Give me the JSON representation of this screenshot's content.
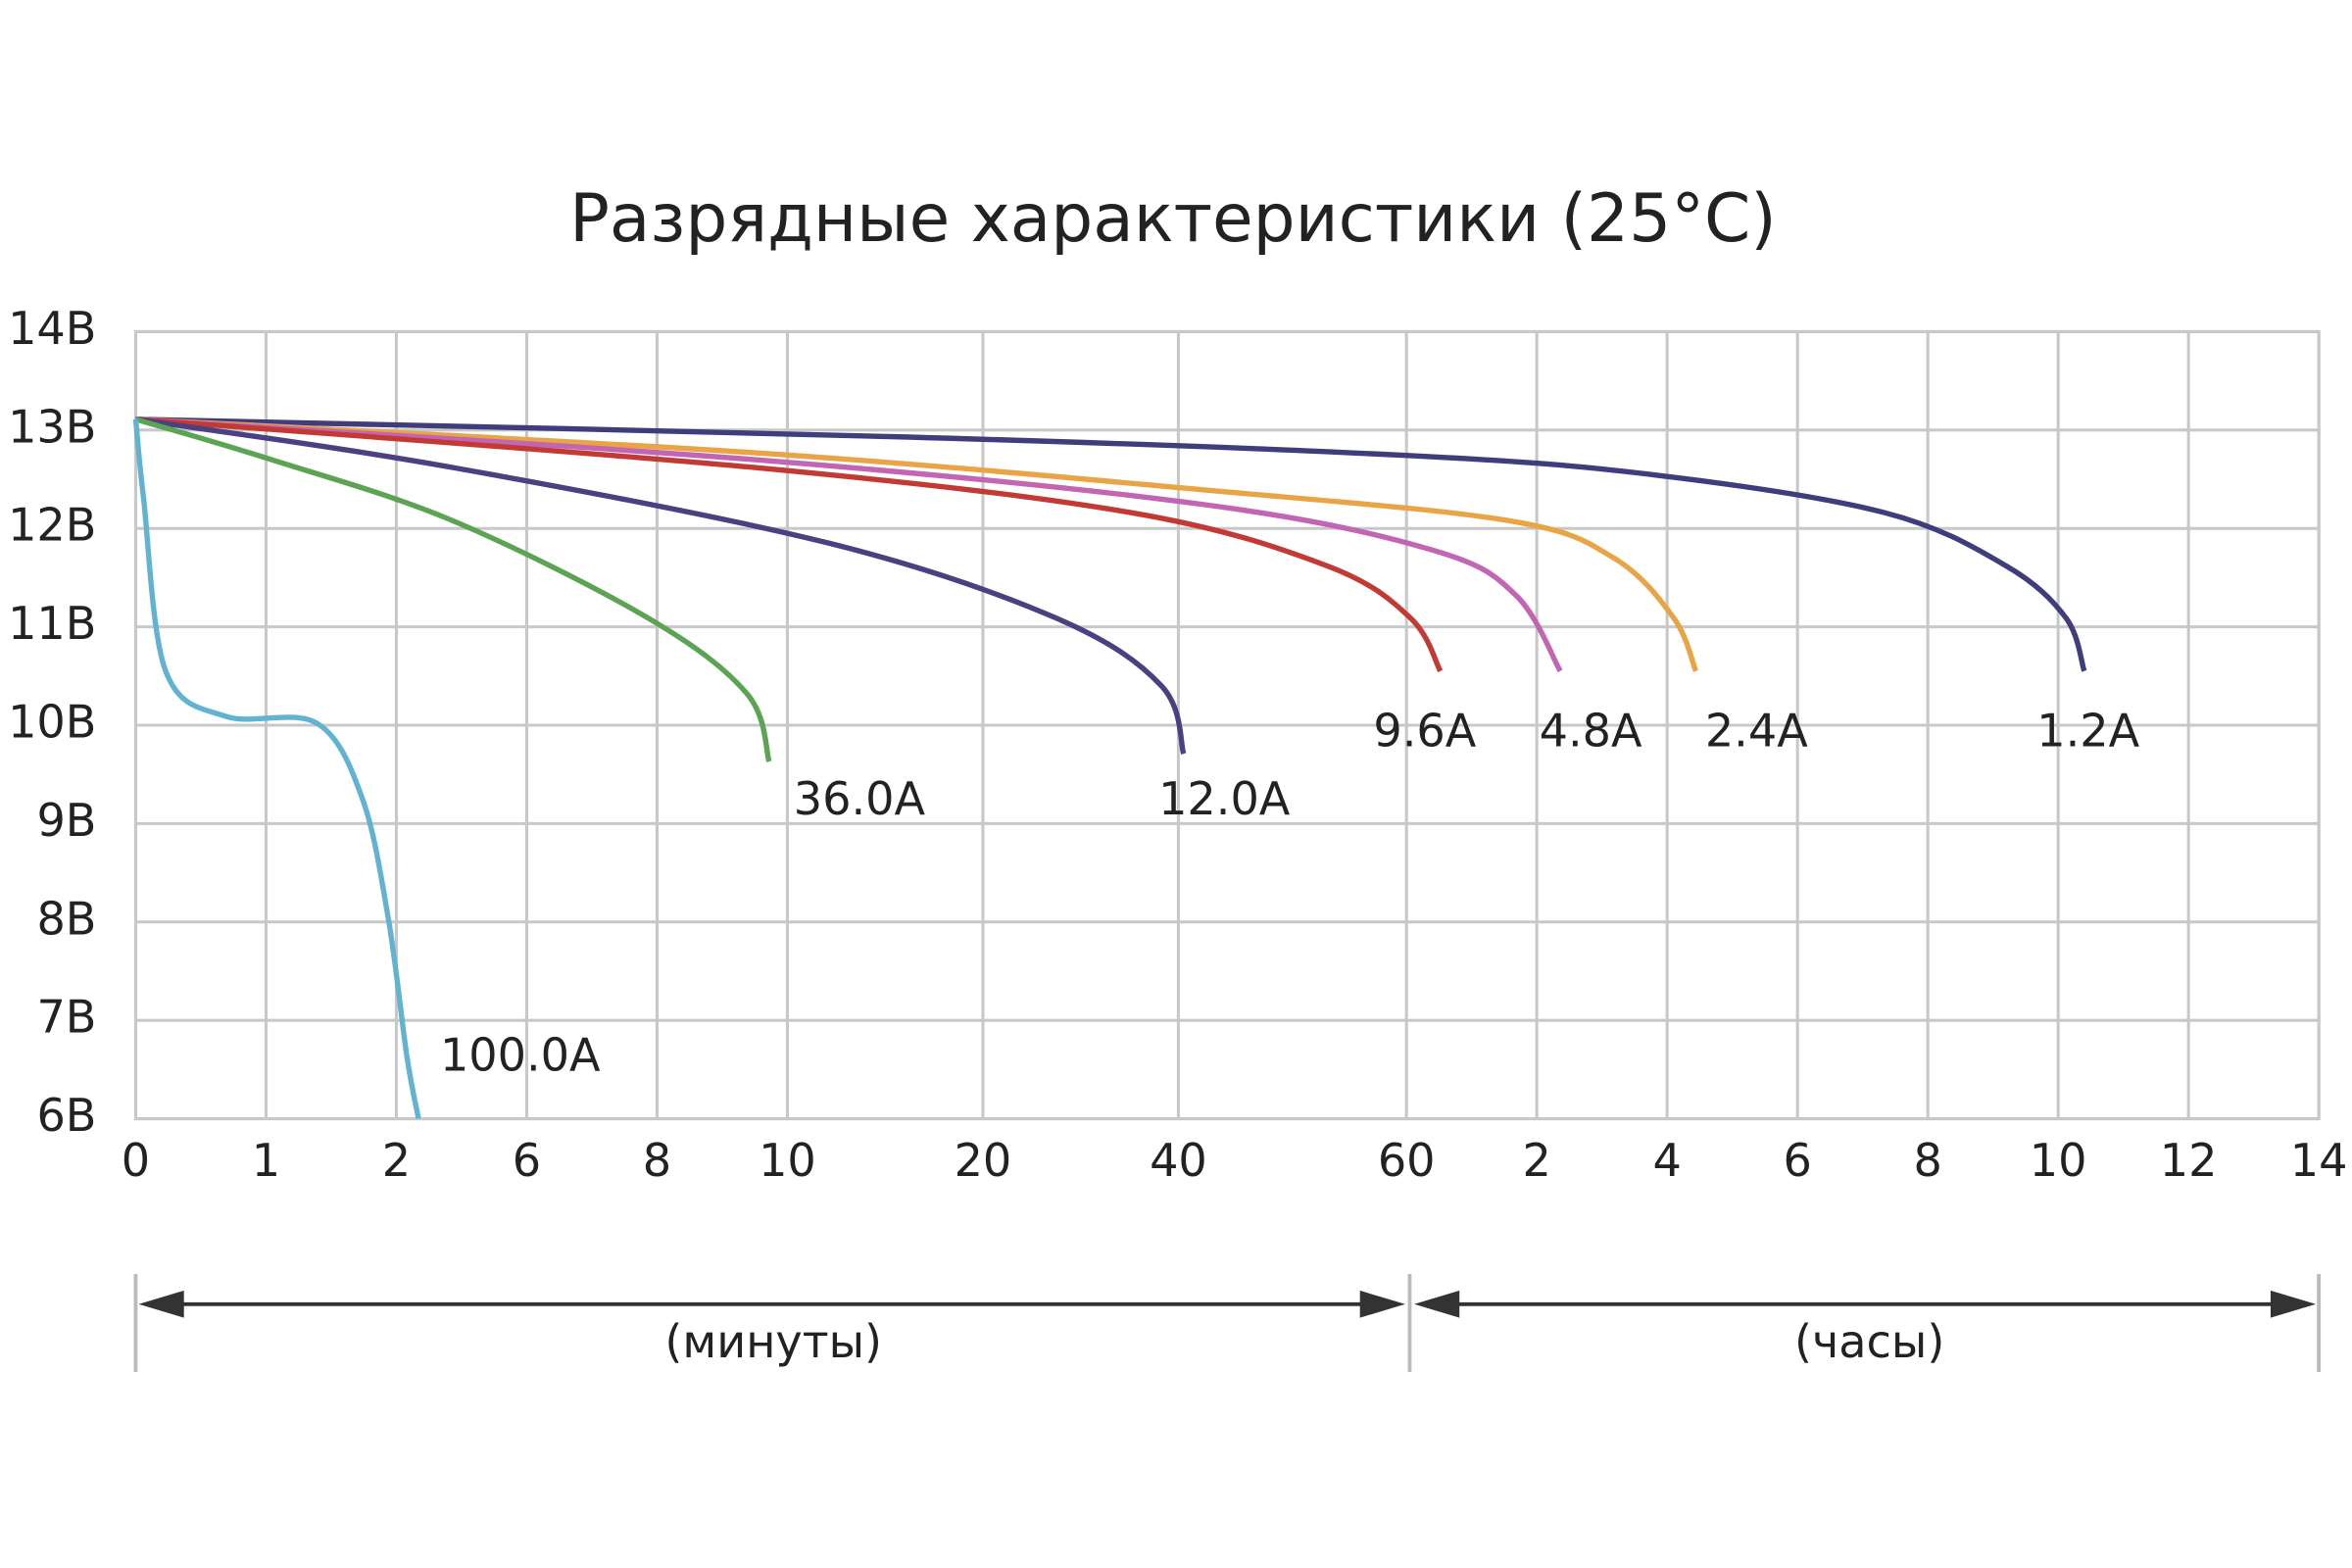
{
  "chart_data": {
    "type": "line",
    "title": "Разрядные характеристики (25°C)",
    "annotations": [
      "(минуты)",
      "(часы)"
    ],
    "xlim": [
      0,
      16.75
    ],
    "xticks": [
      0,
      1,
      2,
      {
        "value": 3,
        "label": "6"
      },
      {
        "value": 4,
        "label": "8"
      },
      {
        "value": 5,
        "label": "10"
      },
      {
        "value": 6.5,
        "label": "20"
      },
      {
        "value": 8,
        "label": "40"
      },
      {
        "value": 9.75,
        "label": "60"
      },
      {
        "value": 10.75,
        "label": "2"
      },
      {
        "value": 11.75,
        "label": "4"
      },
      {
        "value": 12.75,
        "label": "6"
      },
      {
        "value": 13.75,
        "label": "8"
      },
      {
        "value": 14.75,
        "label": "10"
      },
      {
        "value": 15.75,
        "label": "12"
      },
      {
        "value": 16.75,
        "label": "14"
      }
    ],
    "ylim": [
      6,
      14
    ],
    "yticks": [
      {
        "value": 6,
        "label": "6В"
      },
      {
        "value": 7,
        "label": "7В"
      },
      {
        "value": 8,
        "label": "8В"
      },
      {
        "value": 9,
        "label": "9В"
      },
      {
        "value": 10,
        "label": "10В"
      },
      {
        "value": 11,
        "label": "11В"
      },
      {
        "value": 12,
        "label": "12В"
      },
      {
        "value": 13,
        "label": "13В"
      },
      {
        "value": 14,
        "label": "14В"
      }
    ],
    "grid": true,
    "series": [
      {
        "name": "1.2A",
        "color": "#3f3d7c",
        "x": [
          0,
          5.9,
          9.78,
          11.68,
          13.42,
          14.35,
          14.81,
          14.95
        ],
        "values": [
          13.11,
          12.93,
          12.74,
          12.54,
          12.16,
          11.62,
          11.09,
          10.55
        ]
      },
      {
        "name": "2.4A",
        "color": "#e9a446",
        "x": [
          0,
          4.74,
          8.21,
          10.53,
          11.34,
          11.8,
          11.97
        ],
        "values": [
          13.11,
          12.77,
          12.39,
          12.08,
          11.7,
          11.09,
          10.55
        ]
      },
      {
        "name": "4.8A",
        "color": "#c265b2",
        "x": [
          0,
          4.74,
          8.21,
          9.95,
          10.59,
          10.93
        ],
        "values": [
          13.11,
          12.7,
          12.24,
          11.78,
          11.32,
          10.55
        ]
      },
      {
        "name": "9.6A",
        "color": "#c33a35",
        "x": [
          0,
          4.74,
          7.64,
          9.14,
          9.78,
          10.01
        ],
        "values": [
          13.11,
          12.62,
          12.16,
          11.62,
          11.09,
          10.55
        ]
      },
      {
        "name": "12.0A",
        "color": "#4a4082",
        "x": [
          0,
          2.43,
          5.32,
          7.06,
          7.87,
          8.04
        ],
        "values": [
          13.11,
          12.62,
          11.85,
          11.09,
          10.4,
          9.71
        ]
      },
      {
        "name": "36.0A",
        "color": "#5ca454",
        "x": [
          0,
          1.04,
          2.43,
          3.93,
          4.69,
          4.86
        ],
        "values": [
          13.11,
          12.7,
          12.08,
          11.09,
          10.32,
          9.63
        ]
      },
      {
        "name": "100.0A",
        "color": "#62b3d2",
        "x": [
          0,
          0.06,
          0.23,
          0.69,
          1.39,
          1.74,
          1.94,
          2.08,
          2.17
        ],
        "values": [
          13.11,
          12.31,
          10.55,
          10.09,
          10.02,
          9.25,
          8.02,
          6.64,
          6.0
        ]
      }
    ]
  }
}
